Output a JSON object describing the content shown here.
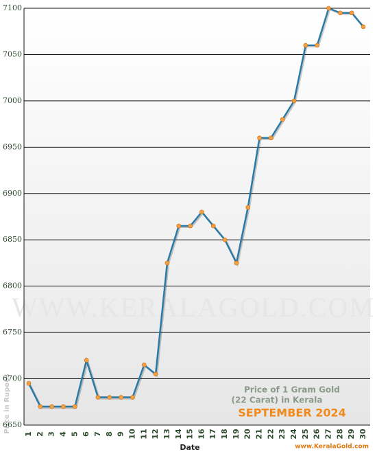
{
  "chart_data": {
    "type": "line",
    "title": "Price of 1 Gram Gold",
    "subtitle": "(22 Carat) in Kerala",
    "period": "SEPTEMBER 2024",
    "watermark": "WWW.KERALAGOLD.COM",
    "source": "www.KeralaGold.com",
    "x_label": "Date",
    "y_label": "Price in Rupees",
    "categories": [
      "1",
      "2",
      "3",
      "4",
      "5",
      "6",
      "7",
      "8",
      "9",
      "10",
      "11",
      "12",
      "13",
      "14",
      "15",
      "16",
      "17",
      "18",
      "19",
      "20",
      "21",
      "22",
      "23",
      "24",
      "25",
      "26",
      "27",
      "28",
      "29",
      "30"
    ],
    "series": [
      {
        "name": "Price",
        "color": "#2b7aa6",
        "values": [
          6695,
          6670,
          6670,
          6670,
          6670,
          6720,
          6680,
          6680,
          6680,
          6680,
          6715,
          6705,
          6825,
          6865,
          6865,
          6880,
          6865,
          6850,
          6825,
          6885,
          6960,
          6960,
          6980,
          7000,
          7060,
          7060,
          7100,
          7095,
          7095,
          7080
        ]
      }
    ],
    "marker_color": "#f5a040",
    "ylim": [
      6650,
      7100
    ],
    "yticks": [
      6650,
      6700,
      6750,
      6800,
      6850,
      6900,
      6950,
      7000,
      7050,
      7100
    ],
    "grid": true
  }
}
